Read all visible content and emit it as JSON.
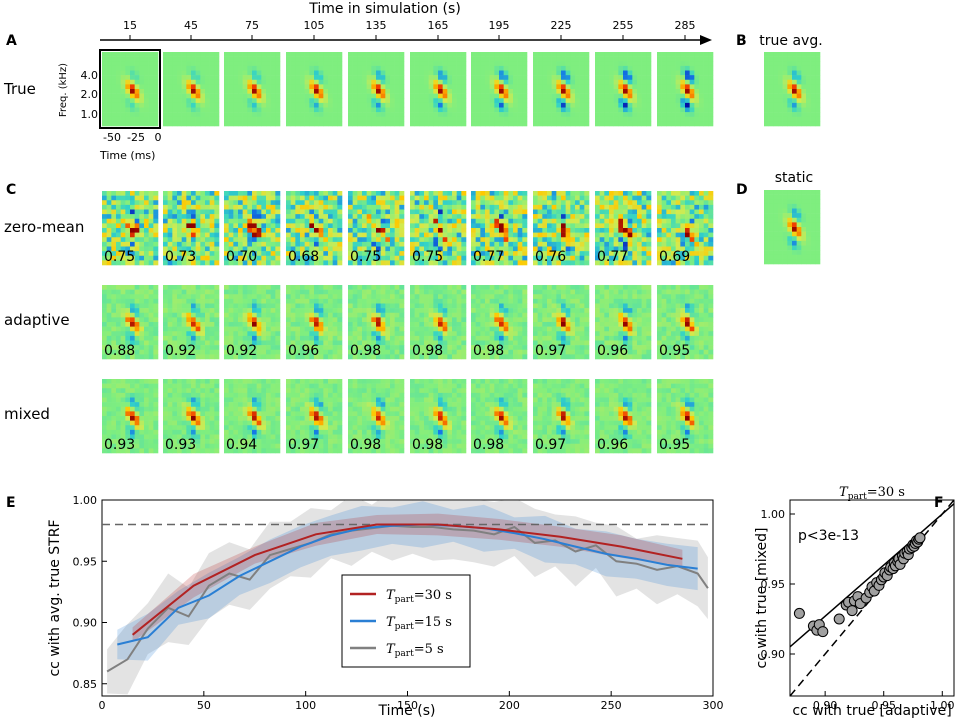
{
  "panel_labels": {
    "a": "A",
    "b": "B",
    "c": "C",
    "d": "D",
    "e": "E",
    "f": "F"
  },
  "top_axis": {
    "title": "Time in simulation (s)",
    "ticks": [
      "15",
      "45",
      "75",
      "105",
      "135",
      "165",
      "195",
      "225",
      "255",
      "285"
    ]
  },
  "rows": {
    "true": "True",
    "zero_mean": "zero-mean",
    "adaptive": "adaptive",
    "mixed": "mixed"
  },
  "strf_axes": {
    "freq_label": "Freq. (kHz)",
    "freq_ticks": [
      "4.0",
      "2.0",
      "1.0"
    ],
    "time_label": "Time (ms)",
    "time_ticks": [
      "-50",
      "-25",
      "0"
    ]
  },
  "side_titles": {
    "b": "true avg.",
    "d": "static"
  },
  "cc_values": {
    "zero_mean": [
      "0.75",
      "0.73",
      "0.70",
      "0.68",
      "0.75",
      "0.75",
      "0.77",
      "0.76",
      "0.77",
      "0.69"
    ],
    "adaptive": [
      "0.88",
      "0.92",
      "0.92",
      "0.96",
      "0.98",
      "0.98",
      "0.98",
      "0.97",
      "0.96",
      "0.95"
    ],
    "mixed": [
      "0.93",
      "0.93",
      "0.94",
      "0.97",
      "0.98",
      "0.98",
      "0.98",
      "0.97",
      "0.96",
      "0.95"
    ]
  },
  "colors": {
    "strf_bg": "#7fee7f",
    "red": "#b22222",
    "blue": "#2a7fd4",
    "gray": "#808080"
  },
  "chart_data": [
    {
      "type": "line",
      "panel": "E",
      "xlabel": "Time (s)",
      "ylabel": "cc with avg. true STRF",
      "xlim": [
        0,
        300
      ],
      "ylim": [
        0.84,
        1.0
      ],
      "x_ticks": [
        "0",
        "50",
        "100",
        "150",
        "200",
        "250",
        "300"
      ],
      "y_ticks": [
        "0.85",
        "0.90",
        "0.95",
        "1.00"
      ],
      "reference_line": 0.98,
      "legend_position": "center",
      "series": [
        {
          "name": "T_part = 30 s",
          "legend_main": "T",
          "legend_sub": "part",
          "legend_rest": "=30 s",
          "color": "#b22222",
          "x": [
            15,
            45,
            75,
            105,
            135,
            165,
            195,
            225,
            255,
            285
          ],
          "y": [
            0.89,
            0.93,
            0.955,
            0.972,
            0.98,
            0.98,
            0.976,
            0.97,
            0.962,
            0.952
          ],
          "band": 0.006
        },
        {
          "name": "T_part = 15 s",
          "legend_main": "T",
          "legend_sub": "part",
          "legend_rest": "=15 s",
          "color": "#2a7fd4",
          "x": [
            7.5,
            22.5,
            37.5,
            52.5,
            67.5,
            82.5,
            97.5,
            112.5,
            127.5,
            142.5,
            157.5,
            172.5,
            187.5,
            202.5,
            217.5,
            232.5,
            247.5,
            262.5,
            277.5,
            292.5
          ],
          "y": [
            0.882,
            0.888,
            0.912,
            0.922,
            0.938,
            0.95,
            0.962,
            0.971,
            0.977,
            0.979,
            0.98,
            0.979,
            0.977,
            0.973,
            0.968,
            0.962,
            0.956,
            0.952,
            0.947,
            0.944
          ],
          "band": 0.012
        },
        {
          "name": "T_part = 5 s",
          "legend_main": "T",
          "legend_sub": "part",
          "legend_rest": "=5 s",
          "color": "#808080",
          "x": [
            2.5,
            12.5,
            22.5,
            32.5,
            42.5,
            52.5,
            62.5,
            72.5,
            82.5,
            92.5,
            102.5,
            112.5,
            122.5,
            132.5,
            142.5,
            152.5,
            162.5,
            172.5,
            182.5,
            192.5,
            202.5,
            212.5,
            222.5,
            232.5,
            242.5,
            252.5,
            262.5,
            272.5,
            282.5,
            292.5,
            297.5
          ],
          "y": [
            0.86,
            0.87,
            0.895,
            0.912,
            0.905,
            0.93,
            0.94,
            0.935,
            0.955,
            0.96,
            0.965,
            0.972,
            0.975,
            0.977,
            0.979,
            0.978,
            0.978,
            0.976,
            0.975,
            0.972,
            0.978,
            0.965,
            0.967,
            0.958,
            0.963,
            0.95,
            0.948,
            0.943,
            0.946,
            0.94,
            0.928
          ],
          "band": 0.018
        }
      ]
    },
    {
      "type": "scatter",
      "panel": "F",
      "title_main": "T",
      "title_sub": "part",
      "title_rest": "=30 s",
      "xlabel": "cc with true [adaptive]",
      "ylabel": "cc with true [mixed]",
      "xlim": [
        0.87,
        1.01
      ],
      "ylim": [
        0.87,
        1.01
      ],
      "x_ticks": [
        "0.90",
        "0.95",
        "1.00"
      ],
      "y_ticks": [
        "0.90",
        "0.95",
        "1.00"
      ],
      "annotation": "p<3e-13",
      "identity_line": true,
      "fit_line": {
        "slope": 0.73,
        "intercept": 0.27
      },
      "points": [
        [
          0.878,
          0.929
        ],
        [
          0.89,
          0.92
        ],
        [
          0.893,
          0.917
        ],
        [
          0.895,
          0.921
        ],
        [
          0.898,
          0.916
        ],
        [
          0.912,
          0.925
        ],
        [
          0.918,
          0.935
        ],
        [
          0.92,
          0.937
        ],
        [
          0.923,
          0.931
        ],
        [
          0.925,
          0.938
        ],
        [
          0.928,
          0.941
        ],
        [
          0.93,
          0.936
        ],
        [
          0.935,
          0.94
        ],
        [
          0.938,
          0.944
        ],
        [
          0.94,
          0.948
        ],
        [
          0.942,
          0.945
        ],
        [
          0.944,
          0.951
        ],
        [
          0.946,
          0.949
        ],
        [
          0.948,
          0.953
        ],
        [
          0.95,
          0.955
        ],
        [
          0.951,
          0.958
        ],
        [
          0.953,
          0.956
        ],
        [
          0.955,
          0.96
        ],
        [
          0.956,
          0.962
        ],
        [
          0.958,
          0.961
        ],
        [
          0.959,
          0.965
        ],
        [
          0.96,
          0.963
        ],
        [
          0.962,
          0.966
        ],
        [
          0.963,
          0.968
        ],
        [
          0.964,
          0.964
        ],
        [
          0.966,
          0.97
        ],
        [
          0.967,
          0.968
        ],
        [
          0.968,
          0.972
        ],
        [
          0.97,
          0.973
        ],
        [
          0.971,
          0.971
        ],
        [
          0.972,
          0.975
        ],
        [
          0.974,
          0.976
        ],
        [
          0.975,
          0.978
        ],
        [
          0.976,
          0.977
        ],
        [
          0.977,
          0.979
        ],
        [
          0.978,
          0.981
        ],
        [
          0.979,
          0.98
        ],
        [
          0.98,
          0.982
        ],
        [
          0.981,
          0.983
        ]
      ]
    }
  ]
}
